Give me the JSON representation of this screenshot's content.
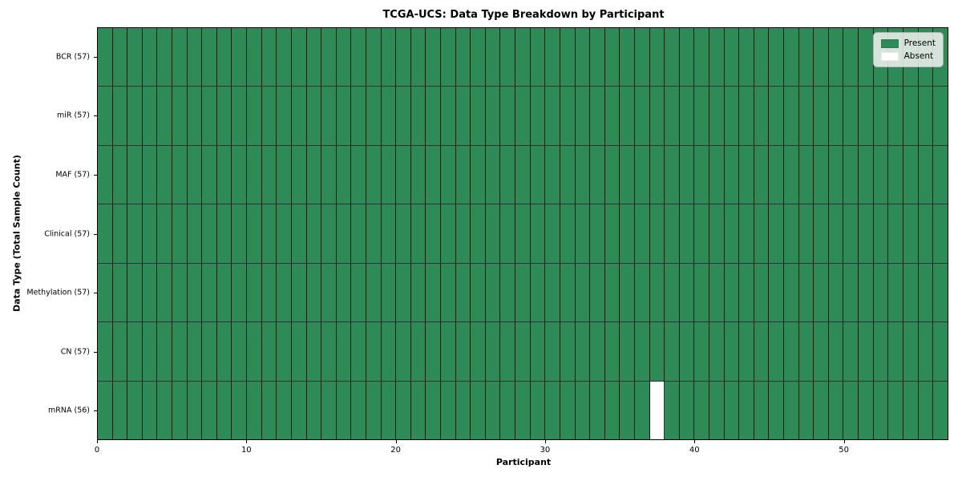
{
  "chart_data": {
    "type": "heatmap",
    "title": "TCGA-UCS: Data Type Breakdown by Participant",
    "xlabel": "Participant",
    "ylabel": "Data Type (Total Sample Count)",
    "n_participants": 57,
    "x_range": [
      0,
      57
    ],
    "x_ticks": [
      0,
      10,
      20,
      30,
      40,
      50
    ],
    "rows": [
      {
        "label": "BCR (57)",
        "data_type": "BCR",
        "total_samples": 57,
        "absent_participants": []
      },
      {
        "label": "miR (57)",
        "data_type": "miR",
        "total_samples": 57,
        "absent_participants": []
      },
      {
        "label": "MAF (57)",
        "data_type": "MAF",
        "total_samples": 57,
        "absent_participants": []
      },
      {
        "label": "Clinical (57)",
        "data_type": "Clinical",
        "total_samples": 57,
        "absent_participants": []
      },
      {
        "label": "Methylation (57)",
        "data_type": "Methylation",
        "total_samples": 57,
        "absent_participants": []
      },
      {
        "label": "CN (57)",
        "data_type": "CN",
        "total_samples": 57,
        "absent_participants": []
      },
      {
        "label": "mRNA (56)",
        "data_type": "mRNA",
        "total_samples": 56,
        "absent_participants": [
          37
        ]
      }
    ],
    "legend": [
      {
        "label": "Present",
        "color": "#2e8b57"
      },
      {
        "label": "Absent",
        "color": "#ffffff"
      }
    ],
    "colors": {
      "present": "#2e8b57",
      "absent": "#ffffff",
      "grid": "rgba(0,0,0,0.8)",
      "plot_border": "#000000"
    },
    "grid": true,
    "legend_position": "upper right"
  }
}
